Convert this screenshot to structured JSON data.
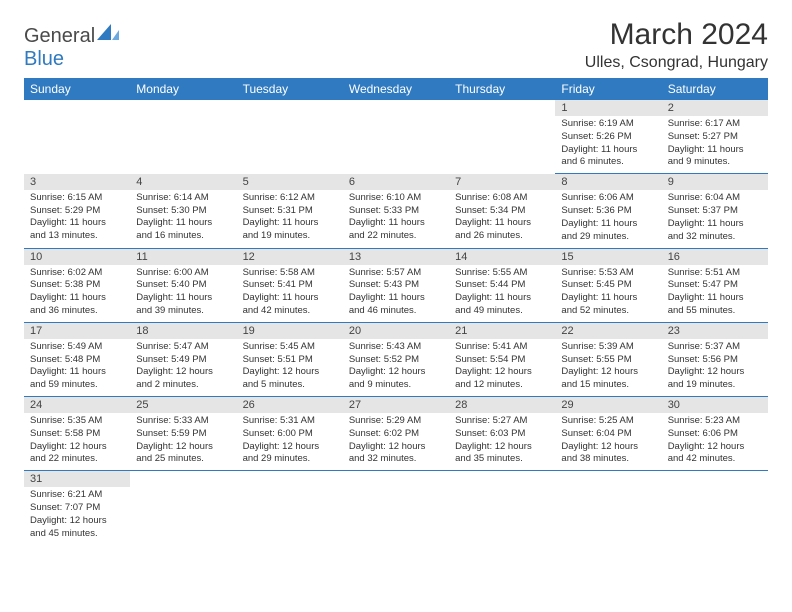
{
  "brand": {
    "name_part1": "General",
    "name_part2": "Blue"
  },
  "title": "March 2024",
  "location": "Ulles, Csongrad, Hungary",
  "colors": {
    "header_bg": "#2f7ac0",
    "header_text": "#ffffff",
    "daynum_bg": "#e5e5e5",
    "text": "#333333",
    "divider": "#2f7ac0"
  },
  "weekdays": [
    "Sunday",
    "Monday",
    "Tuesday",
    "Wednesday",
    "Thursday",
    "Friday",
    "Saturday"
  ],
  "weeks": [
    [
      null,
      null,
      null,
      null,
      null,
      {
        "n": "1",
        "sr": "6:19 AM",
        "ss": "5:26 PM",
        "dl": "11 hours and 6 minutes."
      },
      {
        "n": "2",
        "sr": "6:17 AM",
        "ss": "5:27 PM",
        "dl": "11 hours and 9 minutes."
      }
    ],
    [
      {
        "n": "3",
        "sr": "6:15 AM",
        "ss": "5:29 PM",
        "dl": "11 hours and 13 minutes."
      },
      {
        "n": "4",
        "sr": "6:14 AM",
        "ss": "5:30 PM",
        "dl": "11 hours and 16 minutes."
      },
      {
        "n": "5",
        "sr": "6:12 AM",
        "ss": "5:31 PM",
        "dl": "11 hours and 19 minutes."
      },
      {
        "n": "6",
        "sr": "6:10 AM",
        "ss": "5:33 PM",
        "dl": "11 hours and 22 minutes."
      },
      {
        "n": "7",
        "sr": "6:08 AM",
        "ss": "5:34 PM",
        "dl": "11 hours and 26 minutes."
      },
      {
        "n": "8",
        "sr": "6:06 AM",
        "ss": "5:36 PM",
        "dl": "11 hours and 29 minutes."
      },
      {
        "n": "9",
        "sr": "6:04 AM",
        "ss": "5:37 PM",
        "dl": "11 hours and 32 minutes."
      }
    ],
    [
      {
        "n": "10",
        "sr": "6:02 AM",
        "ss": "5:38 PM",
        "dl": "11 hours and 36 minutes."
      },
      {
        "n": "11",
        "sr": "6:00 AM",
        "ss": "5:40 PM",
        "dl": "11 hours and 39 minutes."
      },
      {
        "n": "12",
        "sr": "5:58 AM",
        "ss": "5:41 PM",
        "dl": "11 hours and 42 minutes."
      },
      {
        "n": "13",
        "sr": "5:57 AM",
        "ss": "5:43 PM",
        "dl": "11 hours and 46 minutes."
      },
      {
        "n": "14",
        "sr": "5:55 AM",
        "ss": "5:44 PM",
        "dl": "11 hours and 49 minutes."
      },
      {
        "n": "15",
        "sr": "5:53 AM",
        "ss": "5:45 PM",
        "dl": "11 hours and 52 minutes."
      },
      {
        "n": "16",
        "sr": "5:51 AM",
        "ss": "5:47 PM",
        "dl": "11 hours and 55 minutes."
      }
    ],
    [
      {
        "n": "17",
        "sr": "5:49 AM",
        "ss": "5:48 PM",
        "dl": "11 hours and 59 minutes."
      },
      {
        "n": "18",
        "sr": "5:47 AM",
        "ss": "5:49 PM",
        "dl": "12 hours and 2 minutes."
      },
      {
        "n": "19",
        "sr": "5:45 AM",
        "ss": "5:51 PM",
        "dl": "12 hours and 5 minutes."
      },
      {
        "n": "20",
        "sr": "5:43 AM",
        "ss": "5:52 PM",
        "dl": "12 hours and 9 minutes."
      },
      {
        "n": "21",
        "sr": "5:41 AM",
        "ss": "5:54 PM",
        "dl": "12 hours and 12 minutes."
      },
      {
        "n": "22",
        "sr": "5:39 AM",
        "ss": "5:55 PM",
        "dl": "12 hours and 15 minutes."
      },
      {
        "n": "23",
        "sr": "5:37 AM",
        "ss": "5:56 PM",
        "dl": "12 hours and 19 minutes."
      }
    ],
    [
      {
        "n": "24",
        "sr": "5:35 AM",
        "ss": "5:58 PM",
        "dl": "12 hours and 22 minutes."
      },
      {
        "n": "25",
        "sr": "5:33 AM",
        "ss": "5:59 PM",
        "dl": "12 hours and 25 minutes."
      },
      {
        "n": "26",
        "sr": "5:31 AM",
        "ss": "6:00 PM",
        "dl": "12 hours and 29 minutes."
      },
      {
        "n": "27",
        "sr": "5:29 AM",
        "ss": "6:02 PM",
        "dl": "12 hours and 32 minutes."
      },
      {
        "n": "28",
        "sr": "5:27 AM",
        "ss": "6:03 PM",
        "dl": "12 hours and 35 minutes."
      },
      {
        "n": "29",
        "sr": "5:25 AM",
        "ss": "6:04 PM",
        "dl": "12 hours and 38 minutes."
      },
      {
        "n": "30",
        "sr": "5:23 AM",
        "ss": "6:06 PM",
        "dl": "12 hours and 42 minutes."
      }
    ],
    [
      {
        "n": "31",
        "sr": "6:21 AM",
        "ss": "7:07 PM",
        "dl": "12 hours and 45 minutes."
      },
      null,
      null,
      null,
      null,
      null,
      null
    ]
  ],
  "labels": {
    "sunrise": "Sunrise:",
    "sunset": "Sunset:",
    "daylight": "Daylight:"
  }
}
